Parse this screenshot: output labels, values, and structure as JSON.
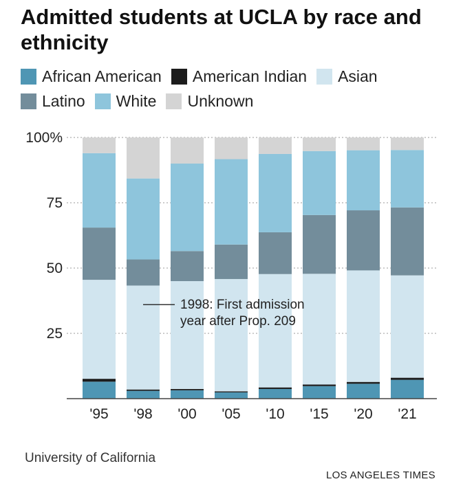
{
  "chart_data": {
    "type": "bar",
    "stacked": true,
    "title": "Admitted students at UCLA by race and ethnicity",
    "categories": [
      "'95",
      "'98",
      "'00",
      "'05",
      "'10",
      "'15",
      "'20",
      "'21"
    ],
    "series": [
      {
        "name": "African American",
        "color": "#4f96b4",
        "values": [
          6.5,
          3,
          3.2,
          2.4,
          3.7,
          4.8,
          5.7,
          7.2
        ]
      },
      {
        "name": "American Indian",
        "color": "#1c1c1c",
        "values": [
          1.1,
          0.5,
          0.5,
          0.4,
          0.6,
          0.6,
          0.7,
          0.8
        ]
      },
      {
        "name": "Asian",
        "color": "#d1e5ef",
        "values": [
          37.9,
          39.8,
          41.3,
          43,
          43.4,
          42.4,
          42.7,
          39.2
        ]
      },
      {
        "name": "Latino",
        "color": "#738d9b",
        "values": [
          20,
          10,
          11.5,
          13.2,
          16,
          22.5,
          23,
          26
        ]
      },
      {
        "name": "White",
        "color": "#8ec5dc",
        "values": [
          28.5,
          31,
          33.5,
          32.7,
          30,
          24.5,
          23,
          22
        ]
      },
      {
        "name": "Unknown",
        "color": "#d4d4d4",
        "values": [
          6,
          15.7,
          10,
          8.3,
          6.3,
          5.2,
          4.9,
          4.8
        ]
      }
    ],
    "yticks": [
      "25",
      "50",
      "75",
      "100%"
    ],
    "ytick_values": [
      25,
      50,
      75,
      100
    ],
    "ylim": [
      0,
      100
    ],
    "grid": true,
    "legend_position": "top",
    "annotation": {
      "line1": "1998: First admission",
      "line2": "year after Prop. 209",
      "category": "'98",
      "value": 36
    }
  },
  "source": "University of California",
  "credit": "LOS ANGELES TIMES"
}
